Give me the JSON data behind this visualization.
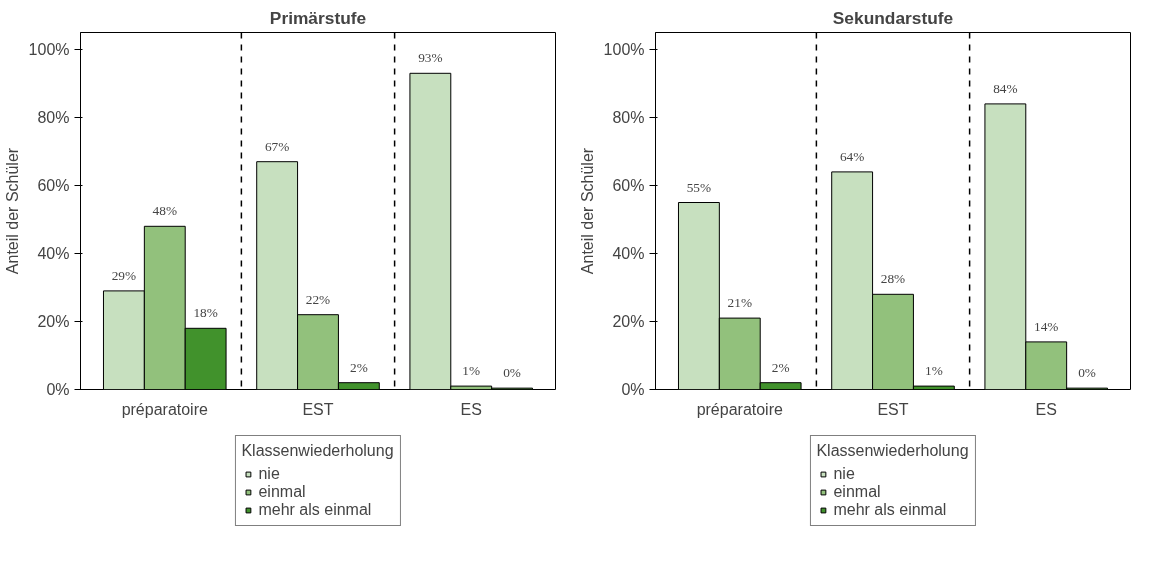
{
  "chart_data": [
    {
      "type": "bar",
      "title": "Primärstufe",
      "ylabel": "Anteil der Schüler",
      "legend_title": "Klassenwiederholung",
      "legend": "bottom",
      "grid": false,
      "categories": [
        "préparatoire",
        "EST",
        "ES"
      ],
      "series": [
        {
          "name": "nie",
          "color": "#c7e0bf",
          "values": [
            29,
            67,
            93
          ],
          "value_labels": [
            "29%",
            "67%",
            "93%"
          ]
        },
        {
          "name": "einmal",
          "color": "#92c17c",
          "values": [
            48,
            22,
            1
          ],
          "value_labels": [
            "48%",
            "22%",
            "1%"
          ]
        },
        {
          "name": "mehr als einmal",
          "color": "#41922c",
          "values": [
            18,
            2,
            0.4
          ],
          "value_labels": [
            "18%",
            "2%",
            "0%"
          ]
        }
      ],
      "ylim": [
        0,
        105
      ],
      "yticks": [
        {
          "value": 0,
          "label": "0%"
        },
        {
          "value": 20,
          "label": "20%"
        },
        {
          "value": 40,
          "label": "40%"
        },
        {
          "value": 60,
          "label": "60%"
        },
        {
          "value": 80,
          "label": "80%"
        },
        {
          "value": 100,
          "label": "100%"
        }
      ]
    },
    {
      "type": "bar",
      "title": "Sekundarstufe",
      "ylabel": "Anteil der Schüler",
      "legend_title": "Klassenwiederholung",
      "legend": "bottom",
      "grid": false,
      "categories": [
        "préparatoire",
        "EST",
        "ES"
      ],
      "series": [
        {
          "name": "nie",
          "color": "#c7e0bf",
          "values": [
            55,
            64,
            84
          ],
          "value_labels": [
            "55%",
            "64%",
            "84%"
          ]
        },
        {
          "name": "einmal",
          "color": "#92c17c",
          "values": [
            21,
            28,
            14
          ],
          "value_labels": [
            "21%",
            "28%",
            "14%"
          ]
        },
        {
          "name": "mehr als einmal",
          "color": "#41922c",
          "values": [
            2,
            1,
            0.4
          ],
          "value_labels": [
            "2%",
            "1%",
            "0%"
          ]
        }
      ],
      "ylim": [
        0,
        105
      ],
      "yticks": [
        {
          "value": 0,
          "label": "0%"
        },
        {
          "value": 20,
          "label": "20%"
        },
        {
          "value": 40,
          "label": "40%"
        },
        {
          "value": 60,
          "label": "60%"
        },
        {
          "value": 80,
          "label": "80%"
        },
        {
          "value": 100,
          "label": "100%"
        }
      ]
    }
  ]
}
